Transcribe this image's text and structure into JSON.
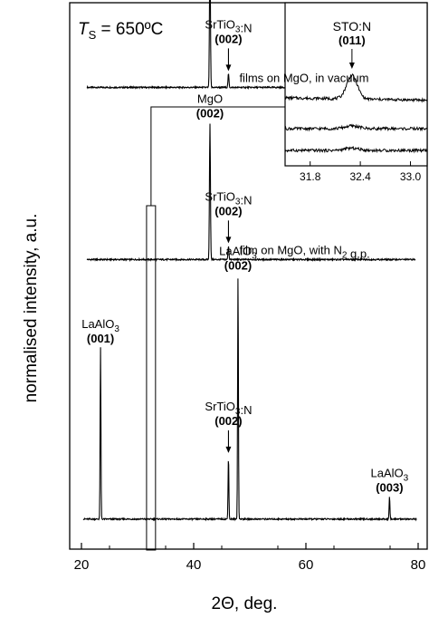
{
  "chart_data": {
    "type": "line",
    "title": "",
    "xlabel": "2Θ, deg.",
    "ylabel": "normalised intensity, a.u.",
    "xlim": [
      20,
      80
    ],
    "xticks": [
      20,
      40,
      60,
      80
    ],
    "yticks_visible": false,
    "grid": false,
    "condition_label": {
      "symbol": "T",
      "subscript": "S",
      "value": " = 650ºC"
    },
    "series": [
      {
        "name": "films on MgO, in vacuum",
        "baseline": 0.845,
        "peaks": [
          {
            "x": 42.9,
            "h": 1.0,
            "w": 0.12
          },
          {
            "x": 46.2,
            "h": 0.1,
            "w": 0.12
          }
        ]
      },
      {
        "name": "film on MgO, with N₂ g.p.",
        "baseline": 0.53,
        "peaks": [
          {
            "x": 42.9,
            "h": 1.0,
            "w": 0.12
          },
          {
            "x": 46.2,
            "h": 0.1,
            "w": 0.12
          }
        ]
      },
      {
        "name": "",
        "baseline": 0.055,
        "peaks": [
          {
            "x": 23.4,
            "h": 0.54,
            "w": 0.1
          },
          {
            "x": 46.2,
            "h": 0.2,
            "w": 0.1
          },
          {
            "x": 47.9,
            "h": 0.77,
            "w": 0.1
          },
          {
            "x": 74.9,
            "h": 0.07,
            "w": 0.1
          }
        ]
      }
    ],
    "annotations": [
      {
        "name": "MgO",
        "miller": "(002)",
        "x": 42.9,
        "series": 0,
        "arrow": false
      },
      {
        "name": "SrTiO₃:N",
        "miller": "(002)",
        "x": 46.2,
        "series": 0,
        "arrow": true
      },
      {
        "name": "MgO",
        "miller": "(002)",
        "x": 42.9,
        "series": 1,
        "arrow": false
      },
      {
        "name": "SrTiO₃:N",
        "miller": "(002)",
        "x": 46.2,
        "series": 1,
        "arrow": true
      },
      {
        "name": "LaAlO₃",
        "miller": "(001)",
        "x": 23.4,
        "series": 2,
        "arrow": false
      },
      {
        "name": "LaAlO₃",
        "miller": "(002)",
        "x": 47.9,
        "series": 2,
        "arrow": false
      },
      {
        "name": "SrTiO₃:N",
        "miller": "(002)",
        "x": 46.2,
        "series": 2,
        "arrow": true
      },
      {
        "name": "LaAlO₃",
        "miller": "(003)",
        "x": 74.9,
        "series": 2,
        "arrow": false
      }
    ],
    "highlight_range": [
      31.6,
      33.2
    ],
    "inset": {
      "xlim": [
        31.5,
        33.2
      ],
      "xticks": [
        "31.8",
        "32.4",
        "33.0"
      ],
      "peak_label": "STO:N",
      "peak_miller": "(011)",
      "peak_x": 32.3
    }
  }
}
